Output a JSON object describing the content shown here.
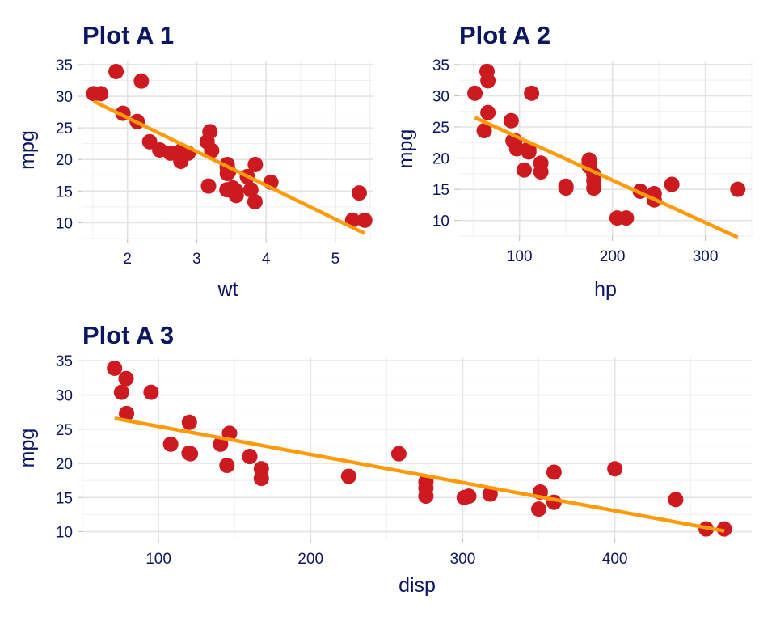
{
  "colors": {
    "point": "#cc1a20",
    "fit": "#ff9a0a",
    "text": "#0b1560",
    "grid": "#e3e3e3"
  },
  "chart_data": [
    {
      "type": "scatter",
      "title": "Plot A 1",
      "xlabel": "wt",
      "ylabel": "mpg",
      "xlim": [
        1.35,
        5.55
      ],
      "ylim": [
        7.5,
        35.5
      ],
      "xticks": [
        2,
        3,
        4,
        5
      ],
      "yticks": [
        10,
        15,
        20,
        25,
        30,
        35
      ],
      "grid": true,
      "points": [
        [
          2.62,
          21.0
        ],
        [
          2.875,
          21.0
        ],
        [
          2.32,
          22.8
        ],
        [
          3.215,
          21.4
        ],
        [
          3.44,
          18.7
        ],
        [
          3.46,
          18.1
        ],
        [
          3.57,
          14.3
        ],
        [
          3.19,
          24.4
        ],
        [
          3.15,
          22.8
        ],
        [
          3.44,
          19.2
        ],
        [
          3.44,
          17.8
        ],
        [
          4.07,
          16.4
        ],
        [
          3.73,
          17.3
        ],
        [
          3.78,
          15.2
        ],
        [
          5.25,
          10.4
        ],
        [
          5.424,
          10.4
        ],
        [
          5.345,
          14.7
        ],
        [
          2.2,
          32.4
        ],
        [
          1.615,
          30.4
        ],
        [
          1.835,
          33.9
        ],
        [
          2.465,
          21.5
        ],
        [
          3.52,
          15.5
        ],
        [
          3.435,
          15.2
        ],
        [
          3.84,
          13.3
        ],
        [
          3.845,
          19.2
        ],
        [
          1.935,
          27.3
        ],
        [
          2.14,
          26.0
        ],
        [
          1.513,
          30.4
        ],
        [
          3.17,
          15.8
        ],
        [
          2.77,
          19.7
        ],
        [
          3.57,
          15.0
        ],
        [
          2.78,
          21.4
        ]
      ],
      "fit_line": [
        [
          1.513,
          29.2
        ],
        [
          5.424,
          8.3
        ]
      ]
    },
    {
      "type": "scatter",
      "title": "Plot A 2",
      "xlabel": "hp",
      "ylabel": "mpg",
      "xlim": [
        35,
        350
      ],
      "ylim": [
        7.5,
        35.5
      ],
      "xticks": [
        100,
        200,
        300
      ],
      "yticks": [
        10,
        15,
        20,
        25,
        30,
        35
      ],
      "grid": true,
      "points": [
        [
          110,
          21.0
        ],
        [
          110,
          21.0
        ],
        [
          93,
          22.8
        ],
        [
          110,
          21.4
        ],
        [
          175,
          18.7
        ],
        [
          105,
          18.1
        ],
        [
          245,
          14.3
        ],
        [
          62,
          24.4
        ],
        [
          95,
          22.8
        ],
        [
          123,
          19.2
        ],
        [
          123,
          17.8
        ],
        [
          180,
          16.4
        ],
        [
          180,
          17.3
        ],
        [
          180,
          15.2
        ],
        [
          205,
          10.4
        ],
        [
          215,
          10.4
        ],
        [
          230,
          14.7
        ],
        [
          66,
          32.4
        ],
        [
          52,
          30.4
        ],
        [
          65,
          33.9
        ],
        [
          97,
          21.5
        ],
        [
          150,
          15.5
        ],
        [
          150,
          15.2
        ],
        [
          245,
          13.3
        ],
        [
          175,
          19.2
        ],
        [
          66,
          27.3
        ],
        [
          91,
          26.0
        ],
        [
          113,
          30.4
        ],
        [
          264,
          15.8
        ],
        [
          175,
          19.7
        ],
        [
          335,
          15.0
        ],
        [
          109,
          21.4
        ]
      ],
      "fit_line": [
        [
          52,
          26.5
        ],
        [
          335,
          7.3
        ]
      ]
    },
    {
      "type": "scatter",
      "title": "Plot A 3",
      "xlabel": "disp",
      "ylabel": "mpg",
      "xlim": [
        50,
        490
      ],
      "ylim": [
        9,
        35.5
      ],
      "xticks": [
        100,
        200,
        300,
        400
      ],
      "yticks": [
        10,
        15,
        20,
        25,
        30,
        35
      ],
      "grid": true,
      "points": [
        [
          160,
          21.0
        ],
        [
          160,
          21.0
        ],
        [
          108,
          22.8
        ],
        [
          258,
          21.4
        ],
        [
          360,
          18.7
        ],
        [
          225,
          18.1
        ],
        [
          360,
          14.3
        ],
        [
          146.7,
          24.4
        ],
        [
          140.8,
          22.8
        ],
        [
          167.6,
          19.2
        ],
        [
          167.6,
          17.8
        ],
        [
          275.8,
          16.4
        ],
        [
          275.8,
          17.3
        ],
        [
          275.8,
          15.2
        ],
        [
          472,
          10.4
        ],
        [
          460,
          10.4
        ],
        [
          440,
          14.7
        ],
        [
          78.7,
          32.4
        ],
        [
          75.7,
          30.4
        ],
        [
          71.1,
          33.9
        ],
        [
          120.1,
          21.5
        ],
        [
          318,
          15.5
        ],
        [
          304,
          15.2
        ],
        [
          350,
          13.3
        ],
        [
          400,
          19.2
        ],
        [
          79,
          27.3
        ],
        [
          120.3,
          26.0
        ],
        [
          95.1,
          30.4
        ],
        [
          351,
          15.8
        ],
        [
          145,
          19.7
        ],
        [
          301,
          15.0
        ],
        [
          121,
          21.4
        ]
      ],
      "fit_line": [
        [
          71.1,
          26.6
        ],
        [
          472,
          10.1
        ]
      ]
    }
  ]
}
